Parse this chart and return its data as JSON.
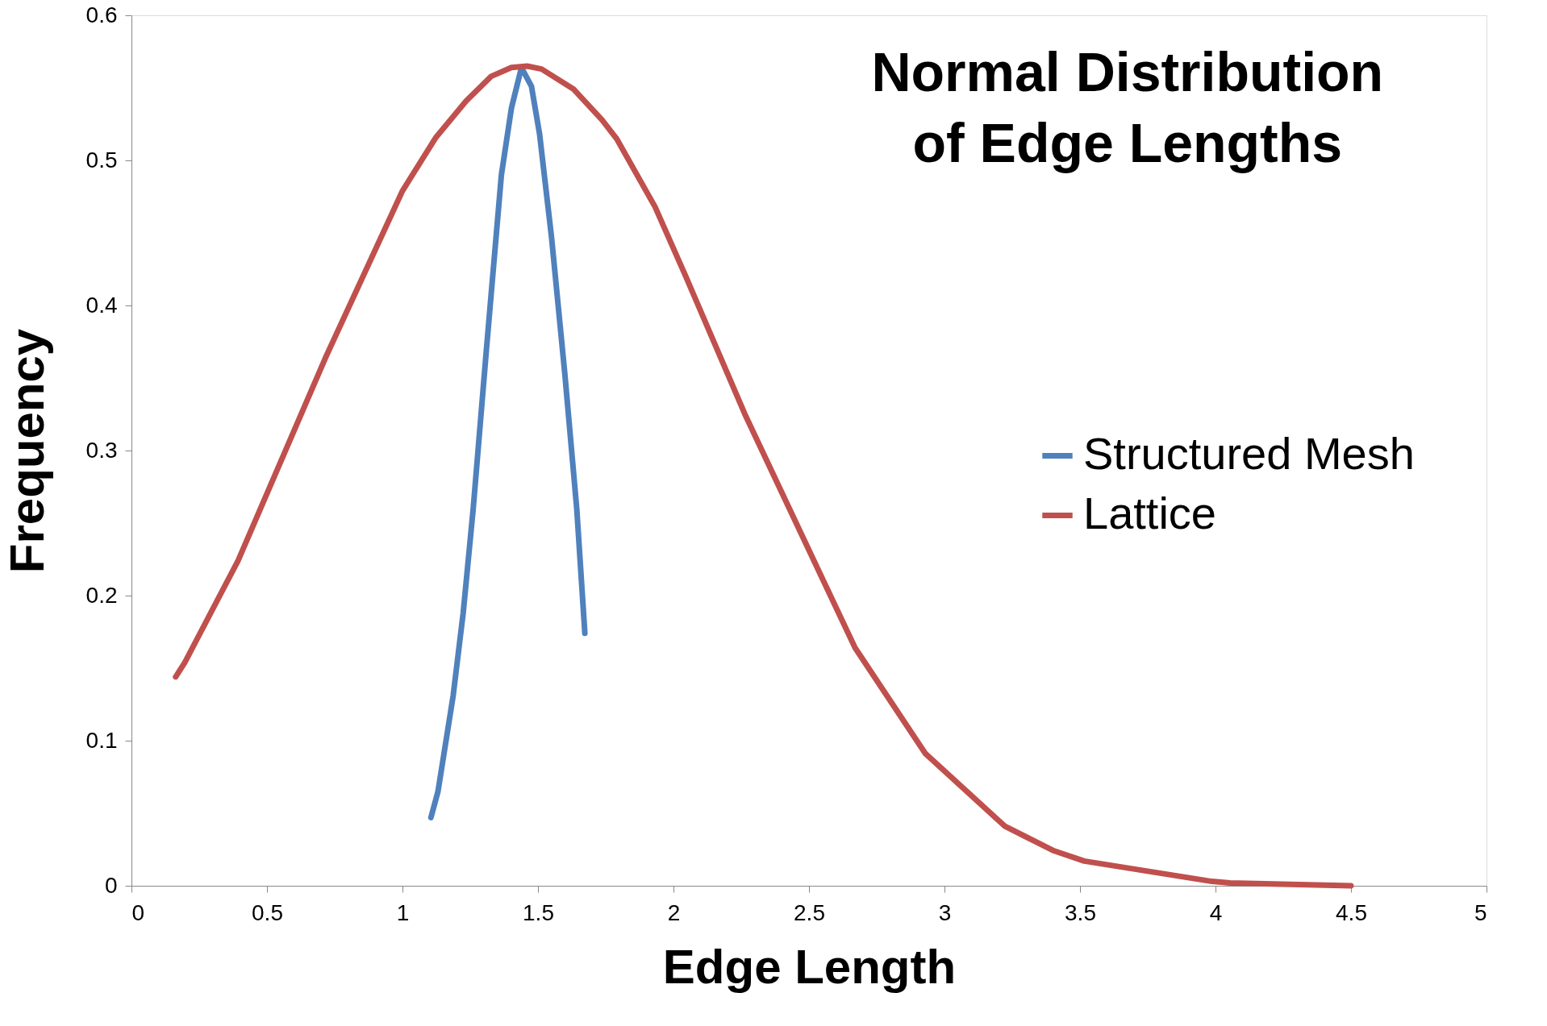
{
  "chart_data": {
    "type": "line",
    "title": "Normal Distribution\nof Edge Lengths",
    "xlabel": "Edge Length",
    "ylabel": "Frequency",
    "xlim": [
      0,
      5
    ],
    "xticks": [
      0,
      0.5,
      1,
      1.5,
      2,
      2.5,
      3,
      3.5,
      4,
      4.5,
      5
    ],
    "ylim": [
      0,
      0.6
    ],
    "yticks": [
      0,
      0.1,
      0.2,
      0.3,
      0.4,
      0.5,
      0.6
    ],
    "grid": false,
    "legend": "right",
    "marker": "none",
    "line_style": "solid",
    "series": [
      {
        "name": "Structured Mesh",
        "color": "#4f81bd",
        "x": [
          1.105,
          1.131,
          1.187,
          1.224,
          1.261,
          1.309,
          1.365,
          1.402,
          1.439,
          1.476,
          1.506,
          1.55,
          1.599,
          1.643,
          1.673
        ],
        "values": [
          0.047,
          0.065,
          0.131,
          0.188,
          0.26,
          0.368,
          0.49,
          0.536,
          0.564,
          0.551,
          0.518,
          0.447,
          0.353,
          0.26,
          0.174
        ]
      },
      {
        "name": "Lattice",
        "color": "#c0504d",
        "x": [
          0.163,
          0.197,
          0.393,
          0.716,
          1.0,
          1.124,
          1.235,
          1.328,
          1.402,
          1.46,
          1.513,
          1.632,
          1.736,
          1.79,
          1.932,
          2.043,
          2.266,
          2.67,
          2.93,
          3.223,
          3.405,
          3.516,
          3.987,
          4.054,
          4.5
        ],
        "values": [
          0.144,
          0.154,
          0.224,
          0.364,
          0.479,
          0.516,
          0.541,
          0.558,
          0.564,
          0.565,
          0.563,
          0.549,
          0.528,
          0.515,
          0.468,
          0.421,
          0.324,
          0.164,
          0.091,
          0.041,
          0.024,
          0.017,
          0.003,
          0.002,
          0.0
        ]
      }
    ]
  }
}
